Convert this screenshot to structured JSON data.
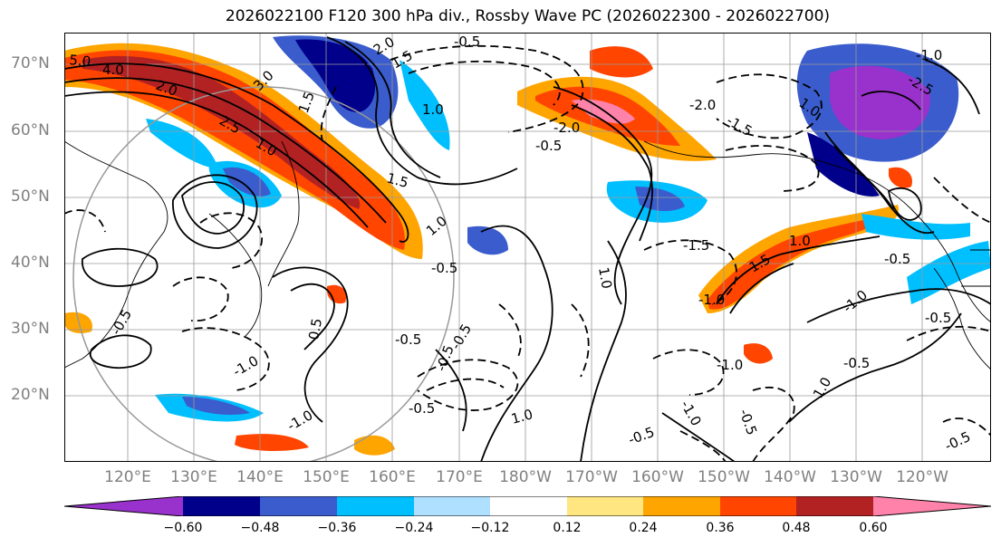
{
  "title": "2026022100 F120 300 hPa div., Rossby Wave PC (2026022300 - 2026022700)",
  "lat_labels": [
    "70°N",
    "60°N",
    "50°N",
    "40°N",
    "30°N",
    "20°N"
  ],
  "lon_labels": [
    "120°E",
    "130°E",
    "140°E",
    "150°E",
    "160°E",
    "170°E",
    "180°W",
    "170°W",
    "160°W",
    "150°W",
    "140°W",
    "130°W",
    "120°W"
  ],
  "contour_labels": [
    "5.0",
    "4.0",
    "2.0",
    "3.0",
    "2.5",
    "1.5",
    "1.0",
    "2.0",
    "1.5",
    "-0.5",
    "1.0",
    "-2.0",
    "-2.0",
    "-1.5",
    "1.0",
    "-1.0",
    "-2.5",
    "1.5",
    "-0.5",
    "1.0",
    "-0.5",
    "1.0",
    "1.0",
    "-1.5",
    "-1.0",
    "1.5",
    "-1.0",
    "-0.5",
    "-0.5",
    "-0.5",
    "-1.0",
    "-0.5",
    "-0.5",
    "0.5",
    "-1.0",
    "-0.5",
    "-1.0",
    "-0.5",
    "1.0",
    "-0.5",
    "-1.0",
    "-0.5",
    "-0.5",
    "-0.5",
    "1.0"
  ],
  "colorbar": {
    "ticks": [
      "−0.60",
      "−0.48",
      "−0.36",
      "−0.24",
      "−0.12",
      "0.12",
      "0.24",
      "0.36",
      "0.48",
      "0.60"
    ],
    "colors": [
      "#9932cc",
      "#00008b",
      "#3a5ccc",
      "#00bfff",
      "#b0e0ff",
      "#ffffff",
      "#ffe680",
      "#ffa500",
      "#ff4500",
      "#b22222",
      "#ff82ab"
    ]
  },
  "fill_colors": {
    "strong_neg": "#9932cc",
    "neg4": "#00008b",
    "neg3": "#3a5ccc",
    "neg2": "#00bfff",
    "neg1": "#b0e0ff",
    "pos1": "#ffe680",
    "pos2": "#ffa500",
    "pos3": "#ff4500",
    "pos4": "#b22222",
    "strong_pos": "#ff82ab"
  }
}
